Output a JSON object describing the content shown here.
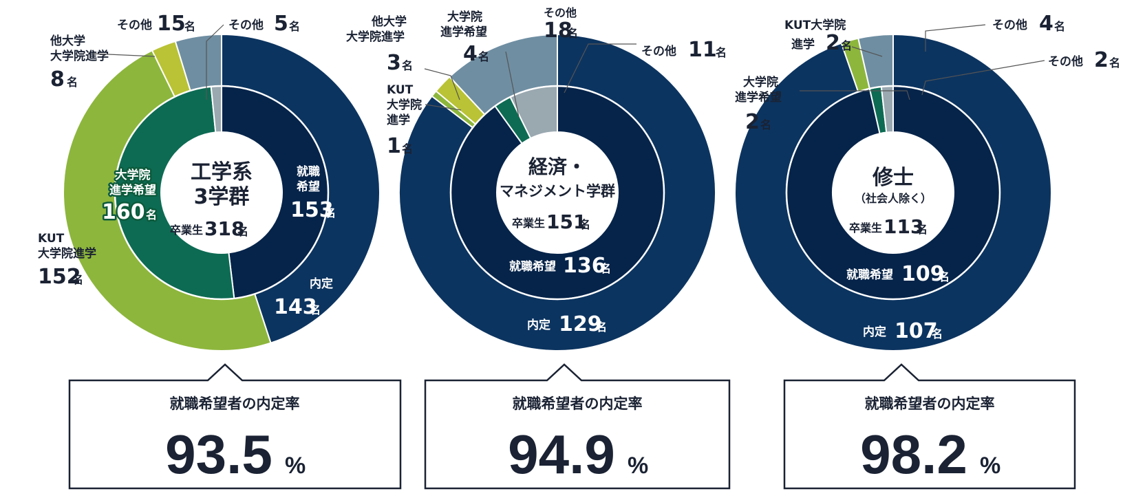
{
  "colors": {
    "navy": "#0c3460",
    "navy_dark": "#06244a",
    "teal": "#0d6b53",
    "light_green": "#8db63c",
    "yellow_green": "#b9c335",
    "slate": "#6f8ea2",
    "gray": "#9aa8b0",
    "text": "#1a2233"
  },
  "unit": "名",
  "percent_sign": "%",
  "charts": [
    {
      "title_lines": [
        "工学系",
        "3学群"
      ],
      "graduates_label": "卒業生",
      "graduates_value": "318",
      "rate_caption": "就職希望者の内定率",
      "rate_value": "93.5",
      "inner_labels": {
        "employment": {
          "lines": [
            "就職",
            "希望"
          ],
          "value": "153"
        },
        "grad_school": {
          "lines": [
            "大学院",
            "進学希望"
          ],
          "value": "160"
        }
      },
      "outer_labels": {
        "offer": {
          "lines": [
            "内定"
          ],
          "value": "143"
        },
        "kut_grad": {
          "lines": [
            "KUT",
            "大学院進学"
          ],
          "value": "152"
        },
        "other_grad": {
          "lines": [
            "他大学",
            "大学院進学"
          ],
          "value": "8"
        },
        "other_outer": {
          "lines": [
            "その他"
          ],
          "value": "15"
        },
        "other_inner": {
          "lines": [
            "その他"
          ],
          "value": "5"
        }
      }
    },
    {
      "title_lines": [
        "経済・",
        "マネジメント学群"
      ],
      "graduates_label": "卒業生",
      "graduates_value": "151",
      "rate_caption": "就職希望者の内定率",
      "rate_value": "94.9",
      "inner_labels": {
        "employment": {
          "lines": [
            "就職希望"
          ],
          "value": "136"
        }
      },
      "outer_labels": {
        "offer": {
          "lines": [
            "内定"
          ],
          "value": "129"
        },
        "other_outer": {
          "lines": [
            "その他"
          ],
          "value": "18"
        },
        "grad_hope": {
          "lines": [
            "大学院",
            "進学希望"
          ],
          "value": "4"
        },
        "other_grad": {
          "lines": [
            "他大学",
            "大学院進学"
          ],
          "value": "3"
        },
        "kut_grad": {
          "lines": [
            "KUT",
            "大学院",
            "進学"
          ],
          "value": "1"
        },
        "other_inner": {
          "lines": [
            "その他"
          ],
          "value": "11"
        }
      }
    },
    {
      "title_lines": [
        "修士",
        "（社会人除く）"
      ],
      "graduates_label": "卒業生",
      "graduates_value": "113",
      "rate_caption": "就職希望者の内定率",
      "rate_value": "98.2",
      "inner_labels": {
        "employment": {
          "lines": [
            "就職希望"
          ],
          "value": "109"
        }
      },
      "outer_labels": {
        "offer": {
          "lines": [
            "内定"
          ],
          "value": "107"
        },
        "kut_grad": {
          "lines": [
            "KUT大学院",
            "進学"
          ],
          "value": "2"
        },
        "other_outer": {
          "lines": [
            "その他"
          ],
          "value": "4"
        },
        "other_inner": {
          "lines": [
            "その他"
          ],
          "value": "2"
        },
        "grad_hope": {
          "lines": [
            "大学院",
            "進学希望"
          ],
          "value": "2"
        }
      }
    }
  ],
  "chart_data": [
    {
      "type": "pie",
      "title": "工学系 3学群",
      "total": 318,
      "inner_ring": [
        {
          "name": "就職希望",
          "value": 153,
          "color": "#06244a"
        },
        {
          "name": "大学院進学希望",
          "value": 160,
          "color": "#0d6b53"
        },
        {
          "name": "その他",
          "value": 5,
          "color": "#9aa8b0"
        }
      ],
      "outer_ring": [
        {
          "name": "内定",
          "value": 143,
          "color": "#0c3460"
        },
        {
          "name": "KUT大学院進学",
          "value": 152,
          "color": "#8db63c"
        },
        {
          "name": "他大学大学院進学",
          "value": 8,
          "color": "#b9c335"
        },
        {
          "name": "その他",
          "value": 15,
          "color": "#6f8ea2"
        }
      ],
      "offer_rate_percent": 93.5
    },
    {
      "type": "pie",
      "title": "経済・マネジメント学群",
      "total": 151,
      "inner_ring": [
        {
          "name": "就職希望",
          "value": 136,
          "color": "#06244a"
        },
        {
          "name": "大学院進学希望",
          "value": 4,
          "color": "#0d6b53"
        },
        {
          "name": "その他",
          "value": 11,
          "color": "#9aa8b0"
        }
      ],
      "outer_ring": [
        {
          "name": "内定",
          "value": 129,
          "color": "#0c3460"
        },
        {
          "name": "KUT大学院進学",
          "value": 1,
          "color": "#8db63c"
        },
        {
          "name": "他大学大学院進学",
          "value": 3,
          "color": "#b9c335"
        },
        {
          "name": "その他",
          "value": 18,
          "color": "#6f8ea2"
        }
      ],
      "offer_rate_percent": 94.9
    },
    {
      "type": "pie",
      "title": "修士（社会人除く）",
      "total": 113,
      "inner_ring": [
        {
          "name": "就職希望",
          "value": 109,
          "color": "#06244a"
        },
        {
          "name": "大学院進学希望",
          "value": 2,
          "color": "#0d6b53"
        },
        {
          "name": "その他",
          "value": 2,
          "color": "#9aa8b0"
        }
      ],
      "outer_ring": [
        {
          "name": "内定",
          "value": 107,
          "color": "#0c3460"
        },
        {
          "name": "KUT大学院進学",
          "value": 2,
          "color": "#8db63c"
        },
        {
          "name": "その他",
          "value": 4,
          "color": "#6f8ea2"
        }
      ],
      "offer_rate_percent": 98.2
    }
  ]
}
